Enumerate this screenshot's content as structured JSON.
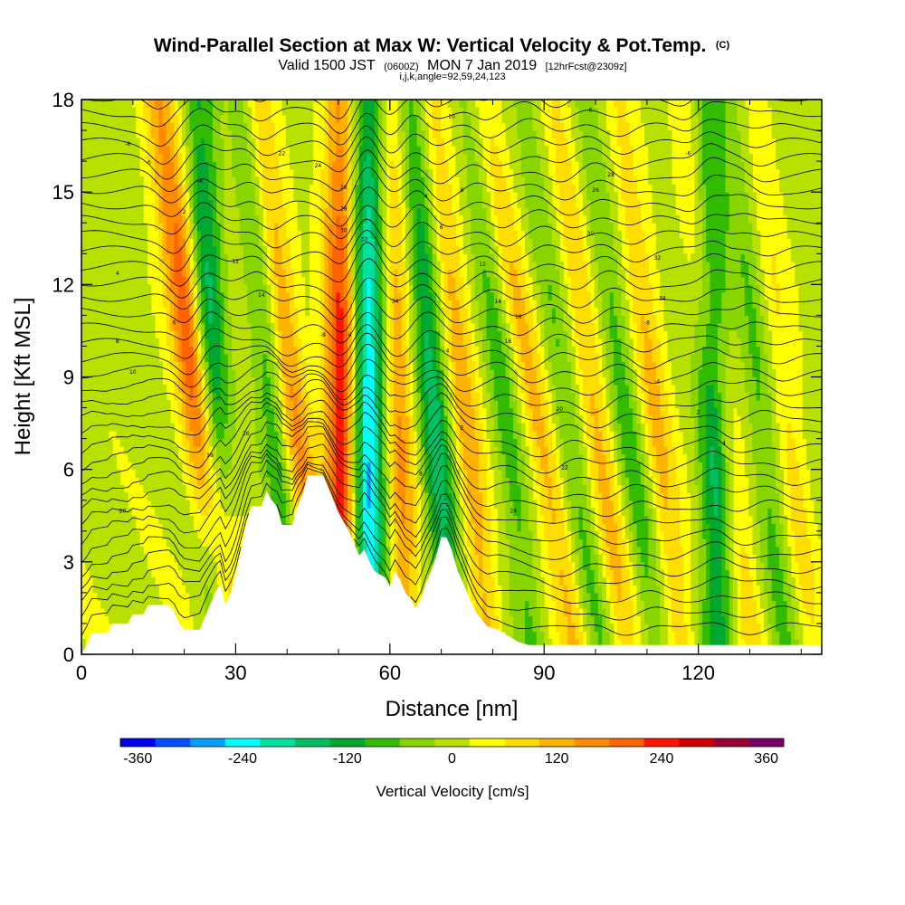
{
  "title": {
    "main": "Wind-Parallel Section at Max W: Vertical Velocity & Pot.Temp.",
    "main_sup": "(C)",
    "valid_prefix": "Valid 1500 JST",
    "valid_utc": "(0600Z)",
    "valid_date": "MON 7 Jan 2019",
    "forecast": "[12hrFcst@2309z]",
    "ijk": "i,j,k,angle=92,59,24,123"
  },
  "chart_data": {
    "type": "heatmap",
    "xlabel": "Distance [nm]",
    "ylabel": "Height [Kft MSL]",
    "xlim": [
      0,
      144
    ],
    "ylim": [
      0,
      18
    ],
    "xticks": [
      0,
      30,
      60,
      90,
      120
    ],
    "xtick_labels": [
      "0",
      "30",
      "60",
      "90",
      "120"
    ],
    "yticks": [
      0,
      3,
      6,
      9,
      12,
      15,
      18
    ],
    "ytick_labels": [
      "0",
      "3",
      "6",
      "9",
      "12",
      "15",
      "18"
    ],
    "grid": false,
    "colorbar": {
      "title": "Vertical Velocity [cm/s]",
      "min": -380,
      "max": 380,
      "step": 40,
      "tick_values": [
        -360,
        -240,
        -120,
        0,
        120,
        240,
        360
      ],
      "tick_labels": [
        "-360",
        "-240",
        "-120",
        "0",
        "120",
        "240",
        "360"
      ],
      "colors": [
        "#0000ee",
        "#0050ff",
        "#00a0ff",
        "#00ffff",
        "#00e0a0",
        "#00c060",
        "#00a830",
        "#33bb00",
        "#88d500",
        "#b8e000",
        "#ffff00",
        "#ffdd00",
        "#ffb300",
        "#ff8c00",
        "#ff6400",
        "#ff1400",
        "#cc0000",
        "#990033",
        "#7a0066"
      ]
    },
    "terrain_kft": [
      [
        0,
        0.0
      ],
      [
        1,
        0.3
      ],
      [
        2,
        0.7
      ],
      [
        5,
        0.7
      ],
      [
        6,
        1.0
      ],
      [
        9,
        1.0
      ],
      [
        10,
        1.3
      ],
      [
        12,
        1.3
      ],
      [
        13,
        1.6
      ],
      [
        17,
        1.6
      ],
      [
        18,
        1.4
      ],
      [
        19,
        1.0
      ],
      [
        20,
        0.8
      ],
      [
        23,
        0.8
      ],
      [
        24,
        1.2
      ],
      [
        25,
        1.6
      ],
      [
        26,
        2.0
      ],
      [
        27,
        2.3
      ],
      [
        28,
        1.6
      ],
      [
        29,
        2.0
      ],
      [
        30,
        2.6
      ],
      [
        31,
        3.4
      ],
      [
        32,
        4.2
      ],
      [
        33,
        4.8
      ],
      [
        35,
        4.8
      ],
      [
        36,
        5.3
      ],
      [
        37,
        5.0
      ],
      [
        38,
        4.8
      ],
      [
        39,
        4.2
      ],
      [
        41,
        4.2
      ],
      [
        42,
        4.8
      ],
      [
        43,
        5.2
      ],
      [
        44,
        5.8
      ],
      [
        47,
        5.8
      ],
      [
        48,
        5.4
      ],
      [
        49,
        5.0
      ],
      [
        50,
        4.6
      ],
      [
        51,
        4.3
      ],
      [
        52,
        4.0
      ],
      [
        53,
        3.6
      ],
      [
        54,
        3.2
      ],
      [
        55,
        3.4
      ],
      [
        56,
        3.0
      ],
      [
        57,
        2.7
      ],
      [
        58,
        2.6
      ],
      [
        59,
        2.5
      ],
      [
        60,
        2.2
      ],
      [
        61,
        2.7
      ],
      [
        62,
        2.4
      ],
      [
        63,
        2.0
      ],
      [
        64,
        1.8
      ],
      [
        65,
        1.5
      ],
      [
        66,
        1.8
      ],
      [
        67,
        2.3
      ],
      [
        68,
        2.7
      ],
      [
        69,
        3.2
      ],
      [
        70,
        3.8
      ],
      [
        71,
        3.8
      ],
      [
        72,
        3.4
      ],
      [
        73,
        2.8
      ],
      [
        74,
        2.4
      ],
      [
        75,
        2.0
      ],
      [
        76,
        1.6
      ],
      [
        77,
        1.3
      ],
      [
        78,
        1.1
      ],
      [
        79,
        0.9
      ],
      [
        81,
        0.8
      ],
      [
        83,
        0.6
      ],
      [
        85,
        0.4
      ],
      [
        87,
        0.3
      ],
      [
        144,
        0.3
      ]
    ],
    "updrafts_cm_s": [
      {
        "x_kft0": 29.0,
        "x_kft18": 15.0,
        "w_max": 240
      },
      {
        "x_kft0": 46.5,
        "x_kft18": 34.5,
        "w_max": 140
      },
      {
        "x_kft0": 51.0,
        "x_kft18": 50.5,
        "w_max": 270
      },
      {
        "x_kft0": 63.0,
        "x_kft18": 60.0,
        "w_max": 140
      },
      {
        "x_kft0": 79.5,
        "x_kft18": 68.0,
        "w_max": 120
      },
      {
        "x_kft0": 96.5,
        "x_kft18": 78.0,
        "w_max": 110
      },
      {
        "x_kft0": 106.0,
        "x_kft18": 92.0,
        "w_max": 100
      },
      {
        "x_kft0": 117.0,
        "x_kft18": 104.5,
        "w_max": 100
      },
      {
        "x_kft0": 131.0,
        "x_kft18": 117.0,
        "w_max": 80
      },
      {
        "x_kft0": 142.0,
        "x_kft18": 131.0,
        "w_max": 60
      }
    ],
    "downdrafts_cm_s": [
      {
        "x_kft0": 27.0,
        "x_kft18": 23.0,
        "w_min": -200
      },
      {
        "x_kft0": 42.0,
        "x_kft18": 31.0,
        "w_min": -100
      },
      {
        "x_kft0": 55.5,
        "x_kft18": 55.5,
        "w_min": -300
      },
      {
        "x_kft0": 72.0,
        "x_kft18": 64.0,
        "w_min": -170
      },
      {
        "x_kft0": 88.0,
        "x_kft18": 75.0,
        "w_min": -90
      },
      {
        "x_kft0": 101.0,
        "x_kft18": 86.0,
        "w_min": -80
      },
      {
        "x_kft0": 112.0,
        "x_kft18": 98.0,
        "w_min": -90
      },
      {
        "x_kft0": 124.0,
        "x_kft18": 122.0,
        "w_min": -170
      },
      {
        "x_kft0": 137.0,
        "x_kft18": 126.0,
        "w_min": -80
      }
    ],
    "theta_contours_C": {
      "count": 38,
      "example_labels": [
        "-8",
        "-6",
        "-4",
        "2",
        "4",
        "6",
        "8",
        "10",
        "12",
        "14",
        "16",
        "18",
        "20",
        "22",
        "24",
        "26",
        "28",
        "30",
        "32",
        "34"
      ]
    }
  }
}
